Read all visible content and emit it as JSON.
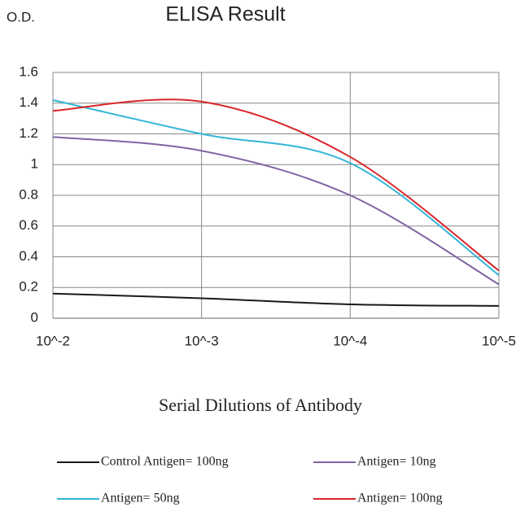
{
  "chart_data": {
    "type": "line",
    "title": "ELISA Result",
    "y_label": "O.D.",
    "x_label": "Serial Dilutions of Antibody",
    "categories": [
      "10^-2",
      "10^-3",
      "10^-4",
      "10^-5"
    ],
    "series": [
      {
        "name": "Control Antigen= 100ng",
        "color": "#1a1a1a",
        "values": [
          0.16,
          0.13,
          0.09,
          0.08
        ]
      },
      {
        "name": "Antigen= 10ng",
        "color": "#8064a2",
        "values": [
          1.18,
          1.09,
          0.8,
          0.22
        ]
      },
      {
        "name": "Antigen= 50ng",
        "color": "#33b5d8",
        "values": [
          1.42,
          1.2,
          1.01,
          0.28
        ]
      },
      {
        "name": "Antigen= 100ng",
        "color": "#d9262b",
        "values": [
          1.35,
          1.41,
          1.05,
          0.31
        ]
      }
    ],
    "ylim": [
      0,
      1.6
    ],
    "yticks": [
      0,
      0.2,
      0.4,
      0.6,
      0.8,
      1,
      1.2,
      1.4,
      1.6
    ],
    "grid": true,
    "smooth": true,
    "legend": "bottom"
  }
}
